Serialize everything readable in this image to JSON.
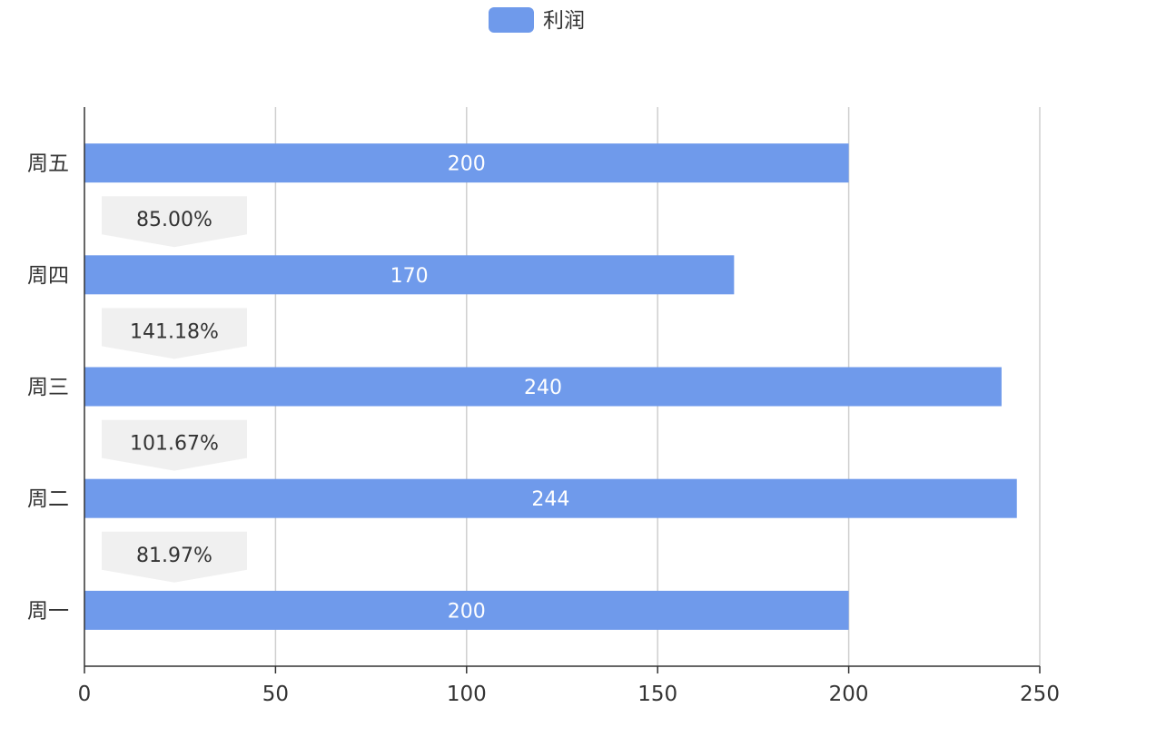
{
  "legend": {
    "label": "利润"
  },
  "chart_data": {
    "type": "bar",
    "orientation": "horizontal",
    "categories": [
      "周一",
      "周二",
      "周三",
      "周四",
      "周五"
    ],
    "series": [
      {
        "name": "利润",
        "values": [
          200,
          244,
          240,
          170,
          200
        ]
      }
    ],
    "annotations": [
      {
        "between": [
          "周一",
          "周二"
        ],
        "text": "81.97%"
      },
      {
        "between": [
          "周二",
          "周三"
        ],
        "text": "101.67%"
      },
      {
        "between": [
          "周三",
          "周四"
        ],
        "text": "141.18%"
      },
      {
        "between": [
          "周四",
          "周五"
        ],
        "text": "85.00%"
      }
    ],
    "xlim": [
      0,
      250
    ],
    "xticks": [
      0,
      50,
      100,
      150,
      200,
      250
    ],
    "grid": true,
    "legend_position": "top-center",
    "colors": {
      "bar": "#6f9aeb",
      "annotation_fill": "#f0f0f0",
      "grid": "#cfcfcf",
      "axis": "#333333"
    }
  }
}
